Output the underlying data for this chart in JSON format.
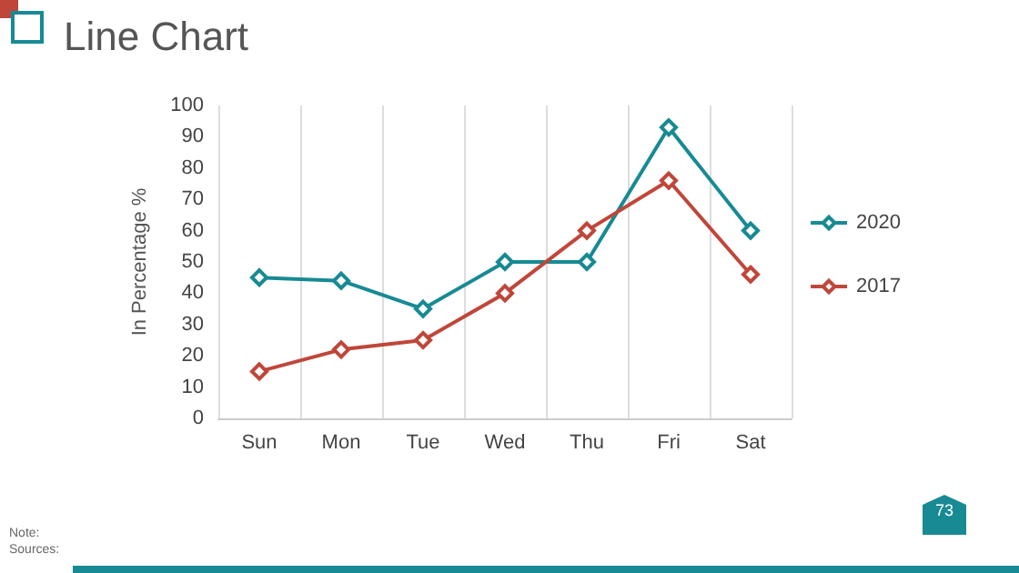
{
  "chart_data": {
    "type": "line",
    "title": "Line Chart",
    "ylabel": "In Percentage %",
    "categories": [
      "Sun",
      "Mon",
      "Tue",
      "Wed",
      "Thu",
      "Fri",
      "Sat"
    ],
    "series": [
      {
        "name": "2020",
        "color": "#178a94",
        "values": [
          45,
          44,
          35,
          50,
          50,
          93,
          60
        ]
      },
      {
        "name": "2017",
        "color": "#c0463a",
        "values": [
          15,
          22,
          25,
          40,
          60,
          76,
          46
        ]
      }
    ],
    "ylim": [
      0,
      100
    ],
    "yticks": [
      0,
      10,
      20,
      30,
      40,
      50,
      60,
      70,
      80,
      90,
      100
    ],
    "grid": "x",
    "legend": "right",
    "marker": "diamond",
    "line_style": "solid",
    "annotations": [
      "Note:",
      "Sources:",
      "73"
    ]
  }
}
